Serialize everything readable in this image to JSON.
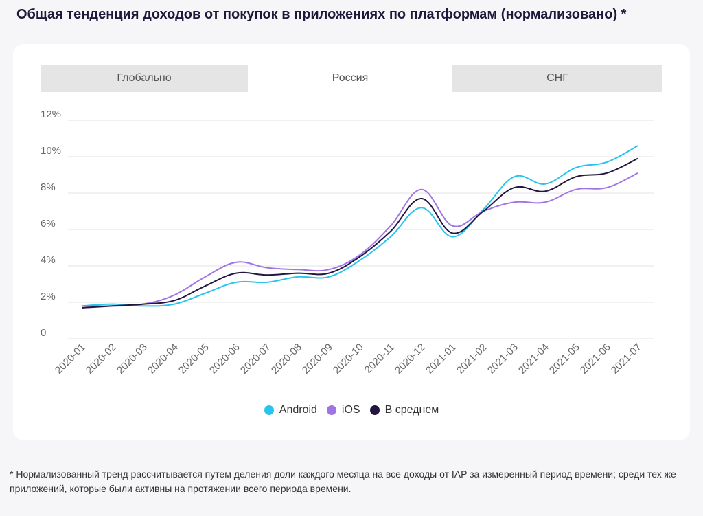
{
  "header": {
    "title": "Общая тенденция доходов от покупок в приложениях по платформам (нормализовано) *"
  },
  "tabs": [
    {
      "label": "Глобально",
      "active": false
    },
    {
      "label": "Россия",
      "active": true
    },
    {
      "label": "СНГ",
      "active": false
    }
  ],
  "colors": {
    "android": "#29c4ee",
    "ios": "#a074e6",
    "average": "#22163f",
    "grid": "#e3e3e3",
    "axis_text": "#666666"
  },
  "chart_data": {
    "type": "line",
    "title": "",
    "xlabel": "",
    "ylabel": "",
    "ylim": [
      0,
      12
    ],
    "y_ticks": [
      "0",
      "2%",
      "4%",
      "6%",
      "8%",
      "10%",
      "12%"
    ],
    "grid": true,
    "legend_position": "bottom",
    "categories": [
      "2020-01",
      "2020-02",
      "2020-03",
      "2020-04",
      "2020-05",
      "2020-06",
      "2020-07",
      "2020-08",
      "2020-09",
      "2020-10",
      "2020-11",
      "2020-12",
      "2021-01",
      "2021-02",
      "2021-03",
      "2021-04",
      "2021-05",
      "2021-06",
      "2021-07"
    ],
    "series": [
      {
        "name": "Android",
        "values": [
          1.8,
          1.9,
          1.8,
          1.9,
          2.5,
          3.1,
          3.1,
          3.4,
          3.4,
          4.3,
          5.6,
          7.2,
          5.6,
          7.1,
          8.9,
          8.5,
          9.4,
          9.7,
          10.6
        ]
      },
      {
        "name": "iOS",
        "values": [
          1.8,
          1.8,
          1.9,
          2.4,
          3.4,
          4.2,
          3.9,
          3.8,
          3.8,
          4.6,
          6.2,
          8.2,
          6.2,
          7.0,
          7.5,
          7.5,
          8.2,
          8.3,
          9.1
        ]
      },
      {
        "name": "В среднем",
        "values": [
          1.7,
          1.8,
          1.9,
          2.1,
          2.9,
          3.6,
          3.5,
          3.6,
          3.6,
          4.5,
          5.9,
          7.7,
          5.8,
          7.0,
          8.3,
          8.1,
          8.9,
          9.1,
          9.9
        ]
      }
    ]
  },
  "footnote": "* Нормализованный тренд рассчитывается путем деления доли каждого месяца на все доходы от IAP за измеренный период времени; среди тех же приложений, которые были активны на протяжении всего периода времени."
}
